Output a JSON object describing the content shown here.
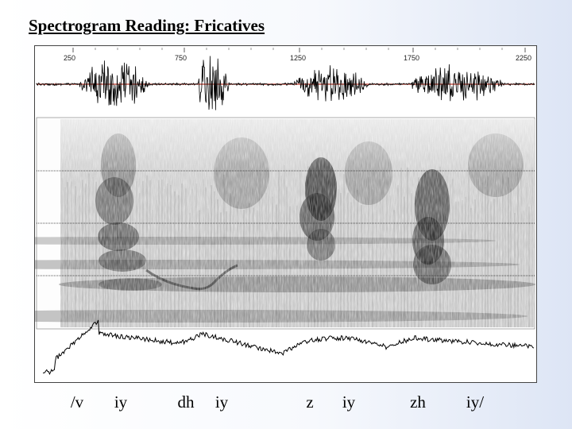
{
  "slide": {
    "title": "Spectrogram Reading: Fricatives"
  },
  "time_axis": {
    "ticks": [
      "250",
      "750",
      "1250",
      "1750",
      "2250"
    ]
  },
  "transcription": [
    "/v",
    "iy",
    "dh",
    "iy",
    "z",
    "iy",
    "zh",
    "iy/"
  ],
  "colors": {
    "waveform_baseline": "#c0392b",
    "trace": "#000000",
    "spectrogram_ink": "#1a1a1a"
  }
}
